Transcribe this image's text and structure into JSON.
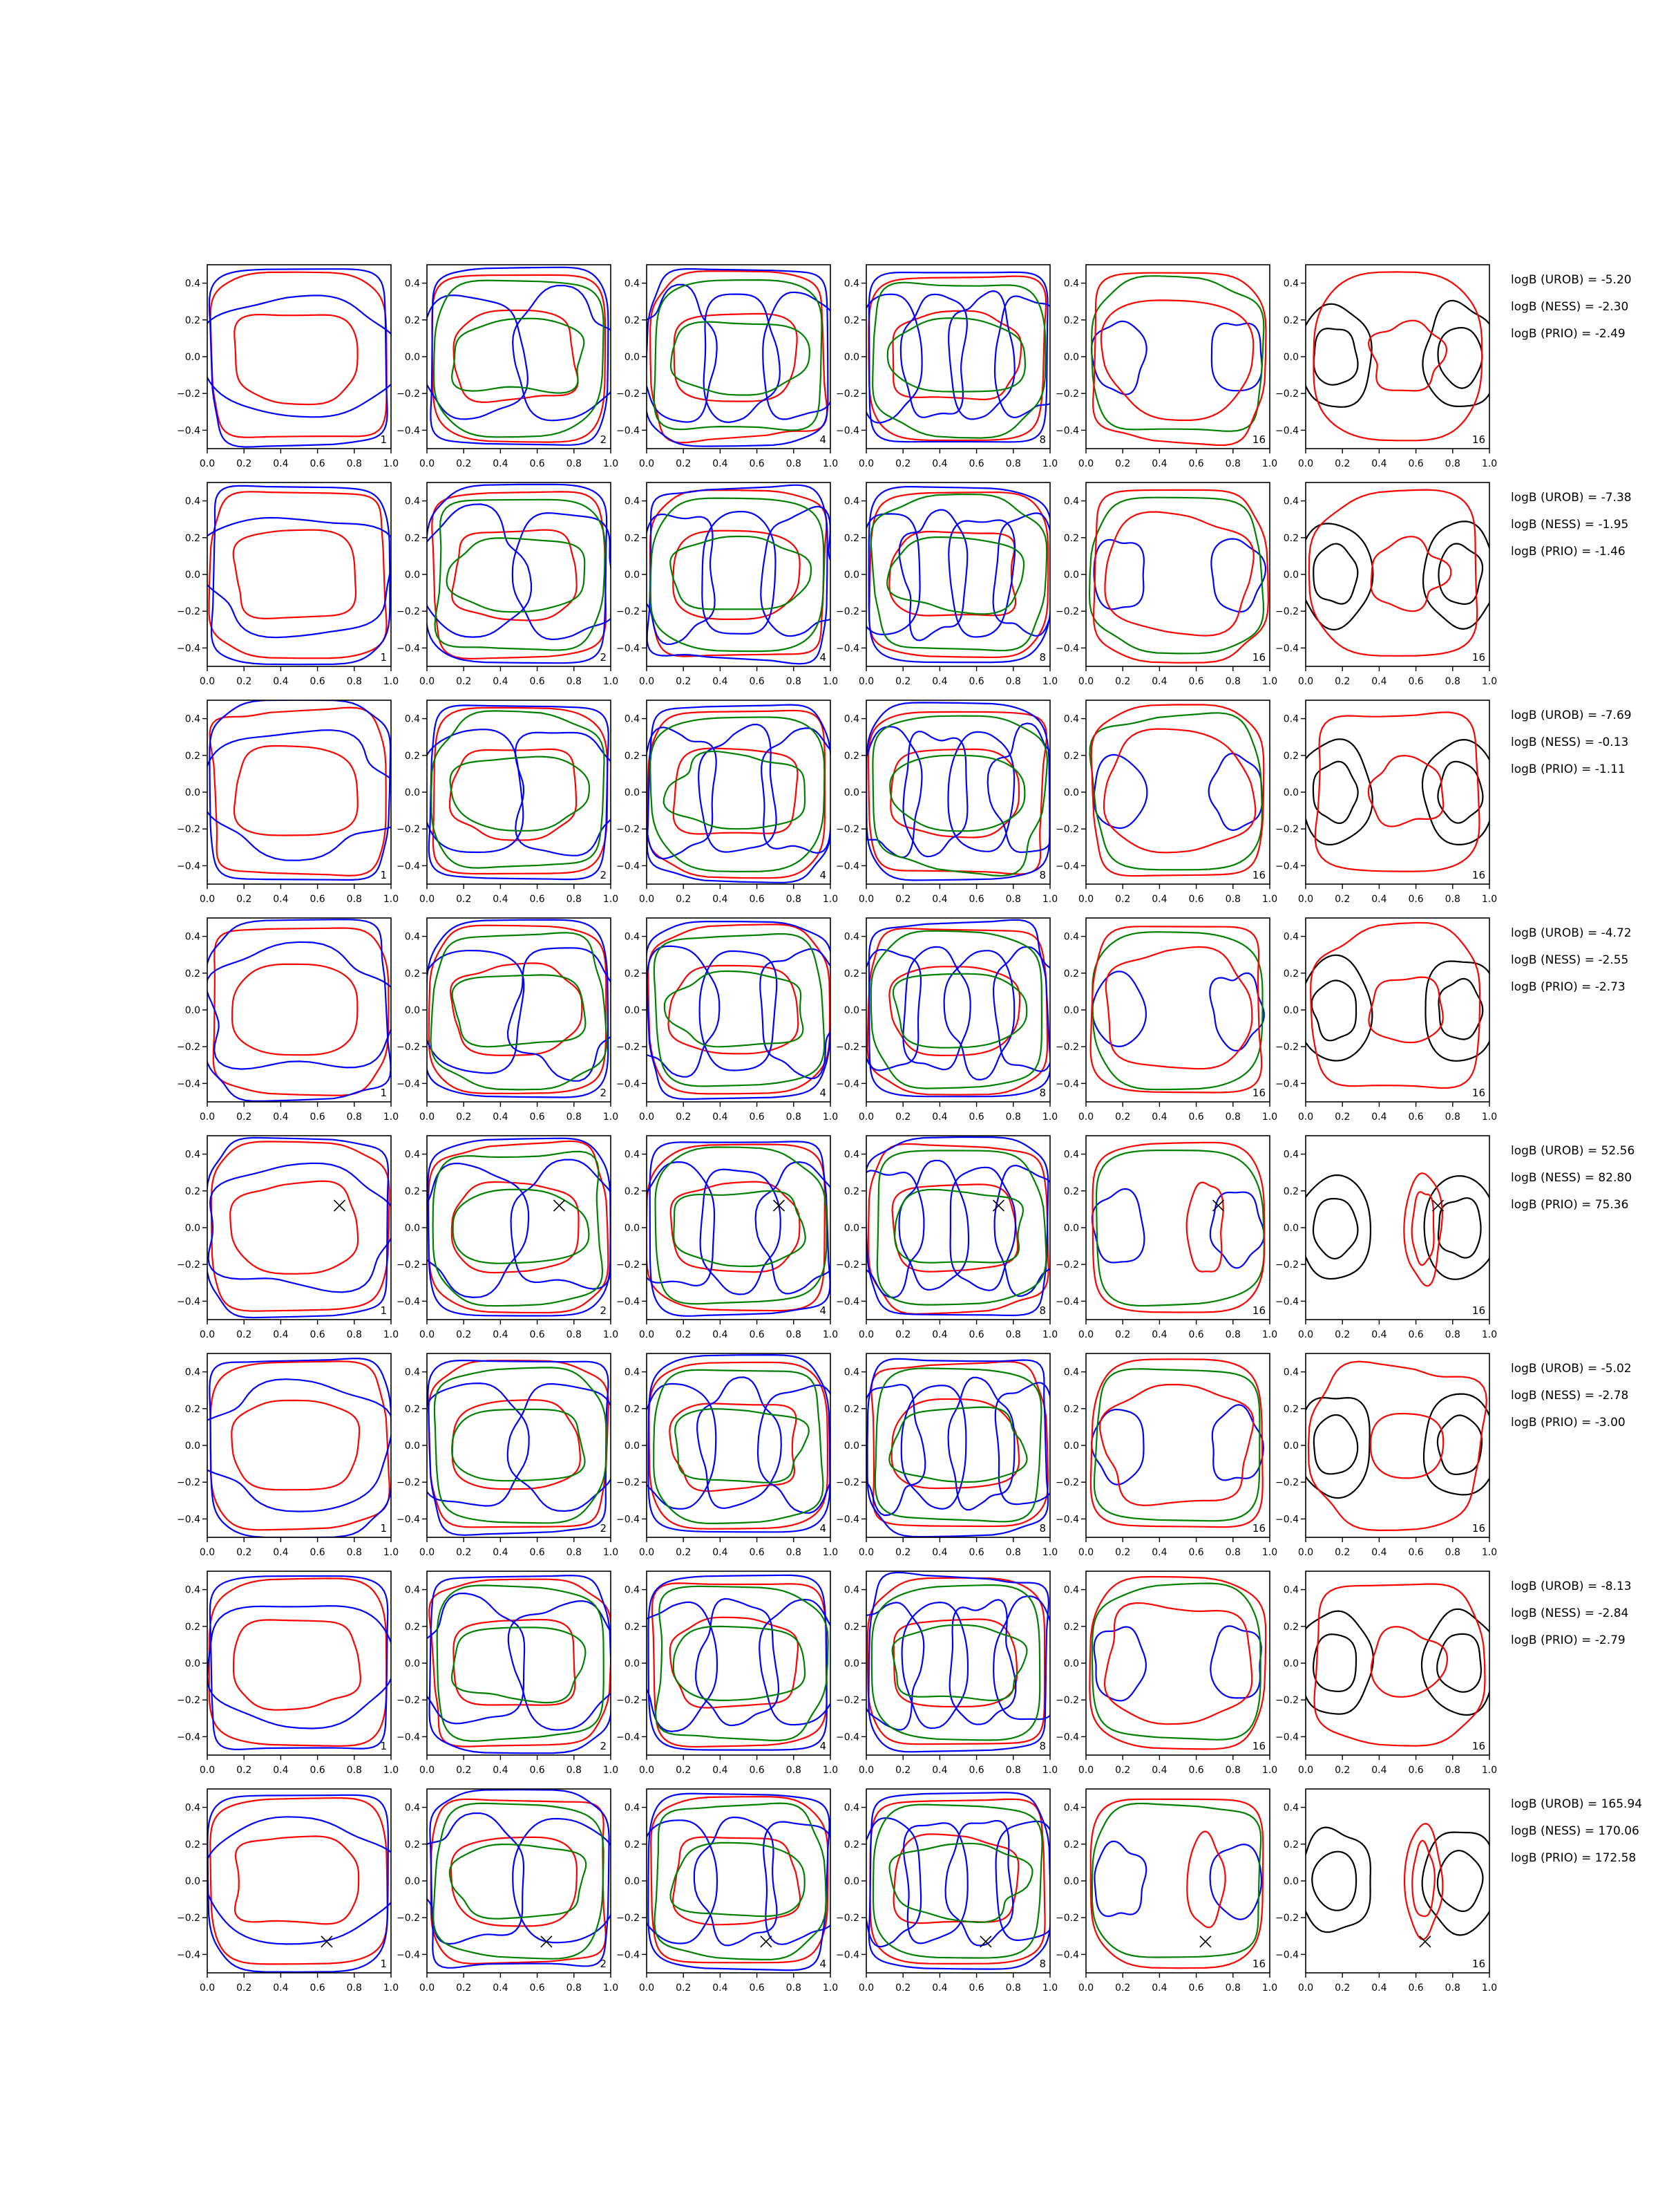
{
  "figure": {
    "axes": {
      "x_ticks": [
        "0.0",
        "0.2",
        "0.4",
        "0.6",
        "0.8",
        "1.0"
      ],
      "y_ticks": [
        "0.4",
        "0.2",
        "0.0",
        "−0.2",
        "−0.4"
      ],
      "xlim": [
        0,
        1
      ],
      "ylim": [
        -0.5,
        0.5
      ]
    },
    "colors": {
      "blue": "#0000ff",
      "red": "#ff0000",
      "green": "#008000",
      "black": "#000000"
    },
    "rows": [
      {
        "panel_labels": [
          "1",
          "2",
          "4",
          "8",
          "16",
          "16"
        ],
        "stats": [
          "logB (UROB) = -5.20",
          "logB (NESS) = -2.30",
          "logB (PRIO) = -2.49"
        ]
      },
      {
        "panel_labels": [
          "1",
          "2",
          "4",
          "8",
          "16",
          "16"
        ],
        "stats": [
          "logB (UROB) = -7.38",
          "logB (NESS) = -1.95",
          "logB (PRIO) = -1.46"
        ]
      },
      {
        "panel_labels": [
          "1",
          "2",
          "4",
          "8",
          "16",
          "16"
        ],
        "stats": [
          "logB (UROB) = -7.69",
          "logB (NESS) = -0.13",
          "logB (PRIO) = -1.11"
        ]
      },
      {
        "panel_labels": [
          "1",
          "2",
          "4",
          "8",
          "16",
          "16"
        ],
        "stats": [
          "logB (UROB) = -4.72",
          "logB (NESS) = -2.55",
          "logB (PRIO) = -2.73"
        ]
      },
      {
        "panel_labels": [
          "1",
          "2",
          "4",
          "8",
          "16",
          "16"
        ],
        "stats": [
          "logB (UROB) = 52.56",
          "logB (NESS) = 82.80",
          "logB (PRIO) = 75.36"
        ],
        "marker": [
          0.72,
          0.12
        ]
      },
      {
        "panel_labels": [
          "1",
          "2",
          "4",
          "8",
          "16",
          "16"
        ],
        "stats": [
          "logB (UROB) = -5.02",
          "logB (NESS) = -2.78",
          "logB (PRIO) = -3.00"
        ]
      },
      {
        "panel_labels": [
          "1",
          "2",
          "4",
          "8",
          "16",
          "16"
        ],
        "stats": [
          "logB (UROB) = -8.13",
          "logB (NESS) = -2.84",
          "logB (PRIO) = -2.79"
        ]
      },
      {
        "panel_labels": [
          "1",
          "2",
          "4",
          "8",
          "16",
          "16"
        ],
        "stats": [
          "logB (UROB) = 165.94",
          "logB (NESS) = 170.06",
          "logB (PRIO) = 172.58"
        ],
        "marker": [
          0.65,
          -0.33
        ]
      }
    ]
  },
  "chart_data": {
    "type": "contour",
    "title": "",
    "xlabel": "",
    "ylabel": "",
    "xlim": [
      0,
      1
    ],
    "ylim": [
      -0.5,
      0.5
    ],
    "grid": false,
    "layout": "8 rows x 6 panels",
    "column_panel_labels": [
      "1",
      "2",
      "4",
      "8",
      "16",
      "16"
    ],
    "series_colors": [
      "blue",
      "red",
      "green",
      "black"
    ],
    "markers": [
      {
        "row": 5,
        "x": 0.72,
        "y": 0.12
      },
      {
        "row": 8,
        "x": 0.65,
        "y": -0.33
      }
    ],
    "log_bayes_factors": [
      {
        "row": 1,
        "UROB": -5.2,
        "NESS": -2.3,
        "PRIO": -2.49
      },
      {
        "row": 2,
        "UROB": -7.38,
        "NESS": -1.95,
        "PRIO": -1.46
      },
      {
        "row": 3,
        "UROB": -7.69,
        "NESS": -0.13,
        "PRIO": -1.11
      },
      {
        "row": 4,
        "UROB": -4.72,
        "NESS": -2.55,
        "PRIO": -2.73
      },
      {
        "row": 5,
        "UROB": 52.56,
        "NESS": 82.8,
        "PRIO": 75.36
      },
      {
        "row": 6,
        "UROB": -5.02,
        "NESS": -2.78,
        "PRIO": -3.0
      },
      {
        "row": 7,
        "UROB": -8.13,
        "NESS": -2.84,
        "PRIO": -2.79
      },
      {
        "row": 8,
        "UROB": 165.94,
        "NESS": 170.06,
        "PRIO": 172.58
      }
    ]
  }
}
